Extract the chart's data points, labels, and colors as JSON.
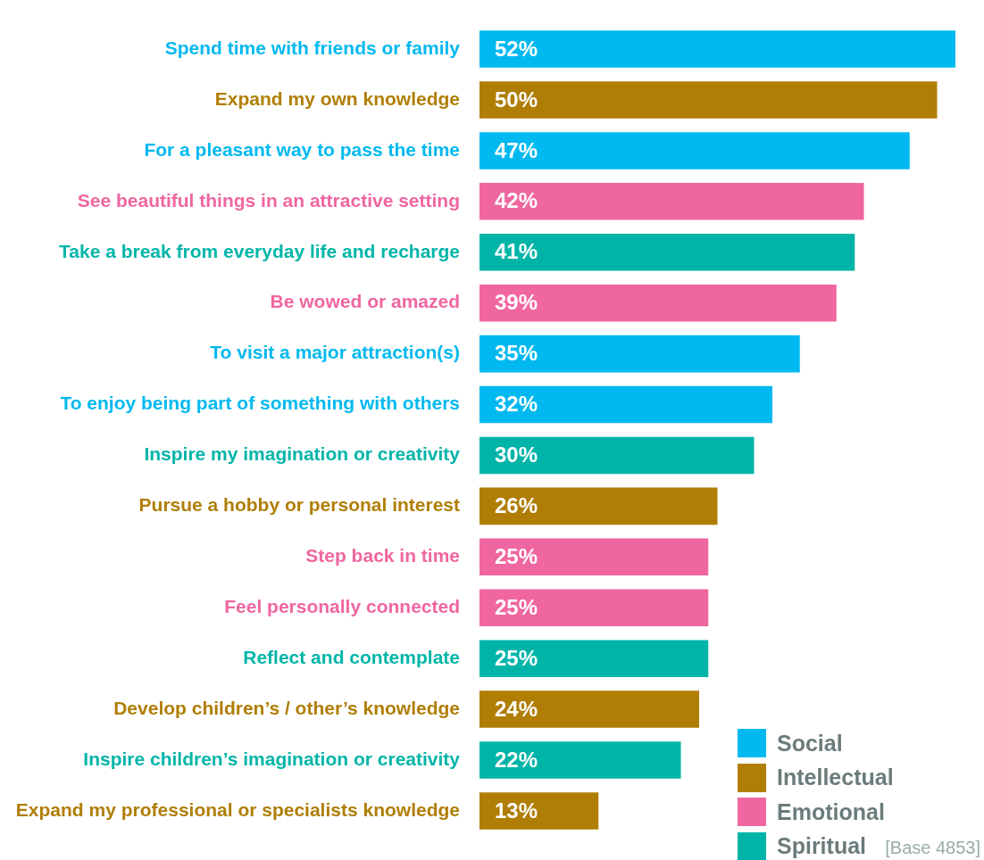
{
  "chart_data": {
    "type": "bar",
    "orientation": "horizontal",
    "stacked": true,
    "tick_labels": "y",
    "legend": "bottom right",
    "categories": [
      "Spend time with friends or family",
      "Expand my own knowledge",
      "For a pleasant way to pass the time",
      "See beautiful things in an attractive setting",
      "Take a break from everyday life and recharge",
      "Be wowed or amazed",
      "To visit a major attraction(s)",
      "To enjoy being part of something with others",
      "Inspire my imagination or creativity",
      "Pursue a hobby or personal interest",
      "Step back in time",
      "Feel personally connected",
      "Reflect and contemplate",
      "Develop children’s / other’s knowledge",
      "Inspire children’s imagination or creativity",
      "Expand my professional or specialists knowledge"
    ],
    "series": [
      {
        "name": "Social",
        "color": "#00b9f0",
        "values": [
          52,
          null,
          47,
          null,
          null,
          null,
          35,
          32,
          null,
          null,
          null,
          null,
          null,
          null,
          null,
          null
        ],
        "value_labels": [
          "52%",
          null,
          "47%",
          null,
          null,
          null,
          "35%",
          "32%",
          null,
          null,
          null,
          null,
          null,
          null,
          null,
          null
        ]
      },
      {
        "name": "Intellectual",
        "color": "#b07e05",
        "values": [
          null,
          50,
          null,
          null,
          null,
          null,
          null,
          null,
          null,
          26,
          null,
          null,
          null,
          24,
          null,
          13
        ],
        "value_labels": [
          null,
          "50%",
          null,
          null,
          null,
          null,
          null,
          null,
          null,
          "26%",
          null,
          null,
          null,
          "24%",
          null,
          "13%"
        ]
      },
      {
        "name": "Emotional",
        "color": "#f066a0",
        "values": [
          null,
          null,
          null,
          42,
          null,
          39,
          null,
          null,
          null,
          null,
          25,
          25,
          null,
          null,
          null,
          null
        ],
        "value_labels": [
          null,
          null,
          null,
          "42%",
          null,
          "39%",
          null,
          null,
          null,
          null,
          "25%",
          "25%",
          null,
          null,
          null,
          null
        ]
      },
      {
        "name": "Spiritual",
        "color": "#00b5a8",
        "values": [
          null,
          null,
          null,
          null,
          41,
          null,
          null,
          null,
          30,
          null,
          null,
          null,
          25,
          null,
          22,
          null
        ],
        "value_labels": [
          null,
          null,
          null,
          null,
          "41%",
          null,
          null,
          null,
          "30%",
          null,
          null,
          null,
          "25%",
          null,
          "22%",
          null
        ]
      }
    ],
    "annotations": [
      "[Base 4853]"
    ]
  }
}
